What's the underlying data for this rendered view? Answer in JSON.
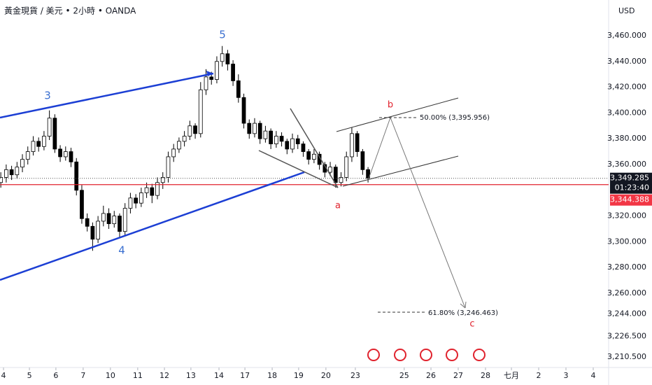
{
  "header": {
    "symbol": "黃金現貨 / 美元 • 2小時 • OANDA",
    "currency": "USD"
  },
  "chart_data": {
    "type": "candlestick",
    "x": [
      -0.1,
      0.1,
      0.3,
      0.5,
      0.7,
      0.9,
      1.1,
      1.3,
      1.5,
      1.7,
      1.9,
      2.1,
      2.3,
      2.5,
      2.7,
      2.9,
      3.1,
      3.3,
      3.5,
      3.7,
      3.9,
      4.1,
      4.3,
      4.5,
      4.7,
      4.9,
      5.1,
      5.3,
      5.5,
      5.7,
      5.9,
      6.1,
      6.3,
      6.5,
      6.7,
      6.9,
      7.1,
      7.3,
      7.5,
      7.7,
      7.9,
      8.1,
      8.3,
      8.5,
      8.7,
      8.9,
      9.1,
      9.3,
      9.5,
      9.7,
      9.9,
      10.1,
      10.3,
      10.5,
      10.7,
      10.9,
      11.1,
      11.3,
      11.5,
      11.7,
      11.9,
      12.1,
      12.3,
      12.5,
      12.7,
      12.9,
      13.1,
      13.3,
      13.5
    ],
    "open": [
      3346,
      3350,
      3356,
      3352,
      3358,
      3364,
      3370,
      3378,
      3374,
      3382,
      3396,
      3372,
      3366,
      3370,
      3362,
      3340,
      3318,
      3312,
      3302,
      3316,
      3322,
      3314,
      3320,
      3308,
      3326,
      3334,
      3330,
      3338,
      3342,
      3336,
      3346,
      3350,
      3366,
      3372,
      3378,
      3382,
      3390,
      3384,
      3418,
      3428,
      3426,
      3440,
      3446,
      3438,
      3425,
      3412,
      3392,
      3384,
      3392,
      3380,
      3386,
      3376,
      3382,
      3378,
      3372,
      3380,
      3376,
      3370,
      3364,
      3368,
      3360,
      3354,
      3358,
      3346,
      3350,
      3366,
      3384,
      3370,
      3356
    ],
    "high": [
      3354,
      3360,
      3359,
      3362,
      3368,
      3374,
      3382,
      3381,
      3386,
      3402,
      3399,
      3375,
      3374,
      3373,
      3365,
      3344,
      3322,
      3315,
      3320,
      3328,
      3326,
      3324,
      3322,
      3330,
      3338,
      3337,
      3342,
      3346,
      3345,
      3350,
      3354,
      3370,
      3376,
      3381,
      3386,
      3394,
      3392,
      3424,
      3434,
      3432,
      3444,
      3452,
      3449,
      3441,
      3430,
      3415,
      3395,
      3396,
      3394,
      3390,
      3388,
      3386,
      3385,
      3380,
      3384,
      3383,
      3378,
      3372,
      3372,
      3370,
      3362,
      3362,
      3360,
      3354,
      3370,
      3389,
      3386,
      3372,
      3358
    ],
    "low": [
      3342,
      3346,
      3348,
      3349,
      3354,
      3360,
      3367,
      3370,
      3371,
      3379,
      3369,
      3362,
      3363,
      3358,
      3336,
      3314,
      3308,
      3293,
      3299,
      3312,
      3310,
      3311,
      3303,
      3305,
      3322,
      3326,
      3327,
      3334,
      3330,
      3333,
      3341,
      3346,
      3362,
      3369,
      3374,
      3379,
      3380,
      3381,
      3414,
      3422,
      3423,
      3436,
      3433,
      3421,
      3408,
      3388,
      3380,
      3381,
      3376,
      3377,
      3372,
      3373,
      3374,
      3368,
      3369,
      3372,
      3366,
      3360,
      3361,
      3356,
      3350,
      3351,
      3342,
      3343,
      3347,
      3362,
      3366,
      3352,
      3346
    ],
    "close": [
      3350,
      3356,
      3352,
      3358,
      3364,
      3370,
      3378,
      3374,
      3382,
      3396,
      3372,
      3366,
      3370,
      3362,
      3340,
      3318,
      3312,
      3302,
      3316,
      3322,
      3314,
      3320,
      3308,
      3326,
      3334,
      3330,
      3338,
      3342,
      3336,
      3346,
      3350,
      3366,
      3372,
      3378,
      3382,
      3390,
      3384,
      3418,
      3428,
      3426,
      3440,
      3446,
      3438,
      3425,
      3412,
      3392,
      3384,
      3392,
      3380,
      3386,
      3376,
      3382,
      3378,
      3372,
      3380,
      3376,
      3370,
      3364,
      3368,
      3360,
      3354,
      3358,
      3346,
      3350,
      3366,
      3384,
      3370,
      3356,
      3349.3
    ],
    "up_color": "#ffffff",
    "down_color": "#000000",
    "xlim": [
      -0.13,
      22.41
    ],
    "xticks": [
      {
        "value": 0,
        "label": "4"
      },
      {
        "value": 0.96,
        "label": "5"
      },
      {
        "value": 1.94,
        "label": "6"
      },
      {
        "value": 2.95,
        "label": "7"
      },
      {
        "value": 3.96,
        "label": "10"
      },
      {
        "value": 4.97,
        "label": "11"
      },
      {
        "value": 5.96,
        "label": "12"
      },
      {
        "value": 6.94,
        "label": "13"
      },
      {
        "value": 7.98,
        "label": "14"
      },
      {
        "value": 8.94,
        "label": "17"
      },
      {
        "value": 9.95,
        "label": "18"
      },
      {
        "value": 10.93,
        "label": "19"
      },
      {
        "value": 11.94,
        "label": "20"
      },
      {
        "value": 13.03,
        "label": "23"
      },
      {
        "value": 14.84,
        "label": "25"
      },
      {
        "value": 15.83,
        "label": "26"
      },
      {
        "value": 16.84,
        "label": "27"
      },
      {
        "value": 17.85,
        "label": "28"
      },
      {
        "value": 18.81,
        "label": "七月"
      },
      {
        "value": 19.82,
        "label": "2"
      },
      {
        "value": 20.83,
        "label": "3"
      },
      {
        "value": 21.84,
        "label": "4"
      }
    ],
    "ylim": [
      3202.39,
      3487.72
    ],
    "yticks": [
      {
        "value": 3460,
        "label": "3,460.000"
      },
      {
        "value": 3440,
        "label": "3,440.000"
      },
      {
        "value": 3420,
        "label": "3,420.000"
      },
      {
        "value": 3400,
        "label": "3,400.000"
      },
      {
        "value": 3380,
        "label": "3,380.000"
      },
      {
        "value": 3360,
        "label": "3,360.000"
      },
      {
        "value": 3320,
        "label": "3,320.000"
      },
      {
        "value": 3300,
        "label": "3,300.000"
      },
      {
        "value": 3280,
        "label": "3,280.000"
      },
      {
        "value": 3260,
        "label": "3,260.000"
      },
      {
        "value": 3244,
        "label": "3,244.000"
      },
      {
        "value": 3226.5,
        "label": "3,226.500"
      },
      {
        "value": 3210.5,
        "label": "3,210.500"
      }
    ],
    "price_tags": [
      {
        "value": 3349.285,
        "label": "3,349.285",
        "countdown": "01:23:40"
      },
      {
        "value": 3344.388,
        "label": "3,344.388"
      }
    ],
    "annotations": {
      "wave_3": "3",
      "wave_4": "4",
      "wave_5": "5",
      "wave_a": "a",
      "wave_b": "b",
      "wave_c": "c",
      "fib_50": "50.00% (3,395.956)",
      "fib_618": "61.80% (3,246.463)"
    }
  }
}
